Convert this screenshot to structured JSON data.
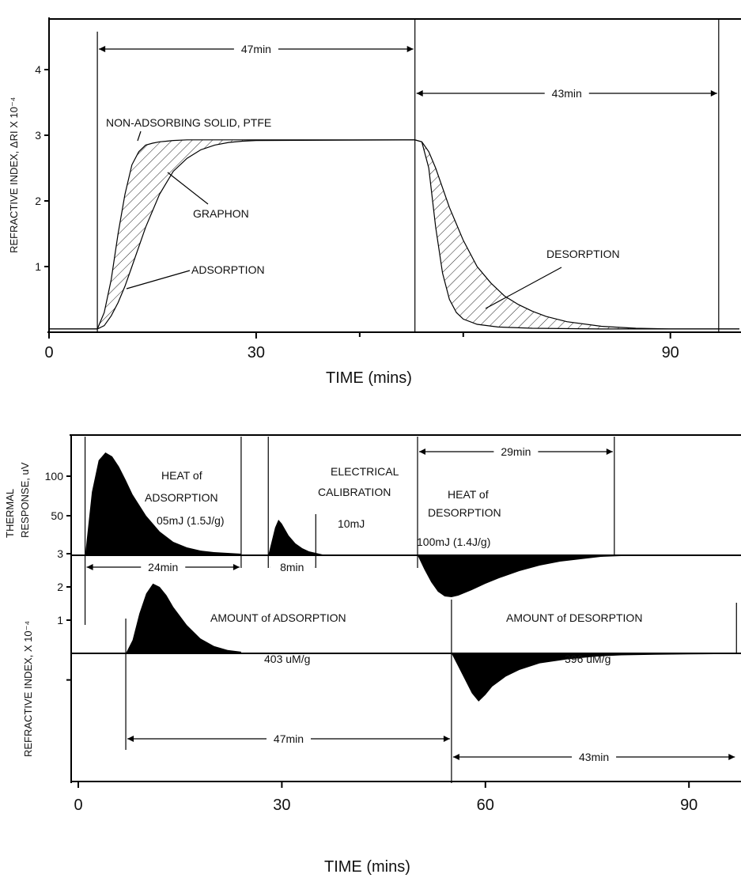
{
  "chart_data": [
    {
      "type": "line",
      "xlabel": "TIME (mins)",
      "ylabel": "REFRACTIVE INDEX, ΔRI X 10⁻⁴",
      "xlim": [
        0,
        100
      ],
      "ylim": [
        0,
        4.7
      ],
      "x_ticks": [
        0,
        30,
        90
      ],
      "y_ticks": [
        1,
        2,
        3,
        4
      ],
      "series": [
        {
          "name": "NON-ADSORBING SOLID, PTFE",
          "x": [
            0,
            7,
            8,
            9,
            10,
            11,
            12,
            13,
            14,
            15,
            16,
            17,
            18,
            20,
            25,
            53,
            54,
            55,
            56,
            57,
            58,
            59,
            60,
            62,
            65,
            70,
            80,
            100
          ],
          "y": [
            0.05,
            0.05,
            0.3,
            0.8,
            1.5,
            2.1,
            2.55,
            2.75,
            2.85,
            2.88,
            2.9,
            2.91,
            2.92,
            2.93,
            2.93,
            2.93,
            2.9,
            2.5,
            1.6,
            0.9,
            0.5,
            0.3,
            0.2,
            0.12,
            0.08,
            0.06,
            0.05,
            0.05
          ]
        },
        {
          "name": "GRAPHON",
          "x": [
            0,
            7,
            8,
            9,
            10,
            11,
            12,
            14,
            16,
            18,
            20,
            22,
            24,
            26,
            28,
            30,
            53,
            54,
            55,
            56,
            57,
            58,
            59,
            60,
            62,
            64,
            66,
            68,
            70,
            72,
            75,
            80,
            85,
            90,
            100
          ],
          "y": [
            0.05,
            0.05,
            0.1,
            0.25,
            0.45,
            0.7,
            1.0,
            1.6,
            2.1,
            2.45,
            2.65,
            2.78,
            2.85,
            2.89,
            2.91,
            2.92,
            2.93,
            2.9,
            2.75,
            2.5,
            2.2,
            1.9,
            1.65,
            1.4,
            1.0,
            0.75,
            0.55,
            0.42,
            0.32,
            0.24,
            0.16,
            0.09,
            0.06,
            0.05,
            0.05
          ]
        }
      ],
      "annotations": [
        {
          "text": "47min",
          "x_range": [
            7,
            53
          ]
        },
        {
          "text": "43min",
          "x_range": [
            53,
            97
          ]
        },
        {
          "text": "NON-ADSORBING SOLID, PTFE"
        },
        {
          "text": "GRAPHON"
        },
        {
          "text": "ADSORPTION"
        },
        {
          "text": "DESORPTION"
        }
      ]
    },
    {
      "type": "area",
      "xlabel": "TIME (mins)",
      "xlim": [
        0,
        100
      ],
      "x_ticks": [
        0,
        30,
        60,
        90
      ],
      "thermal": {
        "ylabel_line1": "THERMAL",
        "ylabel_line2": "RESPONSE, uV",
        "y_ticks": [
          50,
          100
        ],
        "ylim": [
          -55,
          130
        ],
        "series": [
          {
            "name": "HEAT of ADSORPTION",
            "x": [
              1,
              2,
              3,
              4,
              5,
              6,
              7,
              8,
              10,
              12,
              14,
              16,
              18,
              20,
              22,
              24
            ],
            "y": [
              0,
              80,
              120,
              130,
              125,
              112,
              95,
              77,
              50,
              30,
              17,
              10,
              6,
              4,
              3,
              2
            ]
          },
          {
            "name": "ELECTRICAL CALIBRATION",
            "x": [
              28,
              29,
              29.5,
              30,
              31,
              32,
              33,
              34,
              35,
              36
            ],
            "y": [
              0,
              35,
              45,
              40,
              25,
              15,
              9,
              5,
              3,
              1
            ]
          },
          {
            "name": "HEAT of DESORPTION",
            "x": [
              50,
              51,
              52,
              53,
              54,
              55,
              56,
              58,
              60,
              62,
              65,
              68,
              71,
              74,
              77,
              80
            ],
            "y": [
              0,
              -18,
              -34,
              -46,
              -52,
              -53,
              -51,
              -44,
              -36,
              -29,
              -20,
              -13,
              -8,
              -5,
              -2,
              -1
            ]
          }
        ],
        "annotations": [
          {
            "text": "HEAT of"
          },
          {
            "text": "ADSORPTION"
          },
          {
            "text": "05mJ (1.5J/g)"
          },
          {
            "text": "24min",
            "x_range": [
              1,
              24
            ]
          },
          {
            "text": "ELECTRICAL"
          },
          {
            "text": "CALIBRATION"
          },
          {
            "text": "10mJ"
          },
          {
            "text": "8min",
            "x_range": [
              28,
              35
            ]
          },
          {
            "text": "HEAT of"
          },
          {
            "text": "DESORPTION"
          },
          {
            "text": "100mJ (1.4J/g)"
          },
          {
            "text": "29min",
            "x_range": [
              50,
              79
            ]
          }
        ]
      },
      "refractive": {
        "ylabel": "REFRACTIVE INDEX, X 10⁻⁴",
        "y_ticks": [
          1,
          2,
          3
        ],
        "ylim": [
          -1.7,
          3.3
        ],
        "series": [
          {
            "name": "AMOUNT of ADSORPTION",
            "x": [
              7,
              8,
              9,
              10,
              11,
              12,
              13,
              14,
              16,
              18,
              20,
              22,
              24
            ],
            "y": [
              0,
              0.4,
              1.2,
              1.8,
              2.1,
              2.0,
              1.75,
              1.4,
              0.85,
              0.45,
              0.22,
              0.1,
              0.05
            ]
          },
          {
            "name": "AMOUNT of DESORPTION",
            "x": [
              55,
              56,
              57,
              58,
              59,
              60,
              61,
              63,
              65,
              68,
              72,
              76,
              80,
              85,
              90,
              97
            ],
            "y": [
              0,
              -0.4,
              -0.8,
              -1.2,
              -1.45,
              -1.25,
              -1.0,
              -0.7,
              -0.5,
              -0.3,
              -0.18,
              -0.1,
              -0.06,
              -0.04,
              -0.03,
              -0.02
            ]
          }
        ],
        "annotations": [
          {
            "text": "AMOUNT of ADSORPTION"
          },
          {
            "text": "403  uM/g"
          },
          {
            "text": "47min",
            "x_range": [
              7,
              55
            ]
          },
          {
            "text": "AMOUNT of DESORPTION"
          },
          {
            "text": "396  uM/g"
          },
          {
            "text": "43min",
            "x_range": [
              55,
              97
            ]
          }
        ]
      }
    }
  ]
}
